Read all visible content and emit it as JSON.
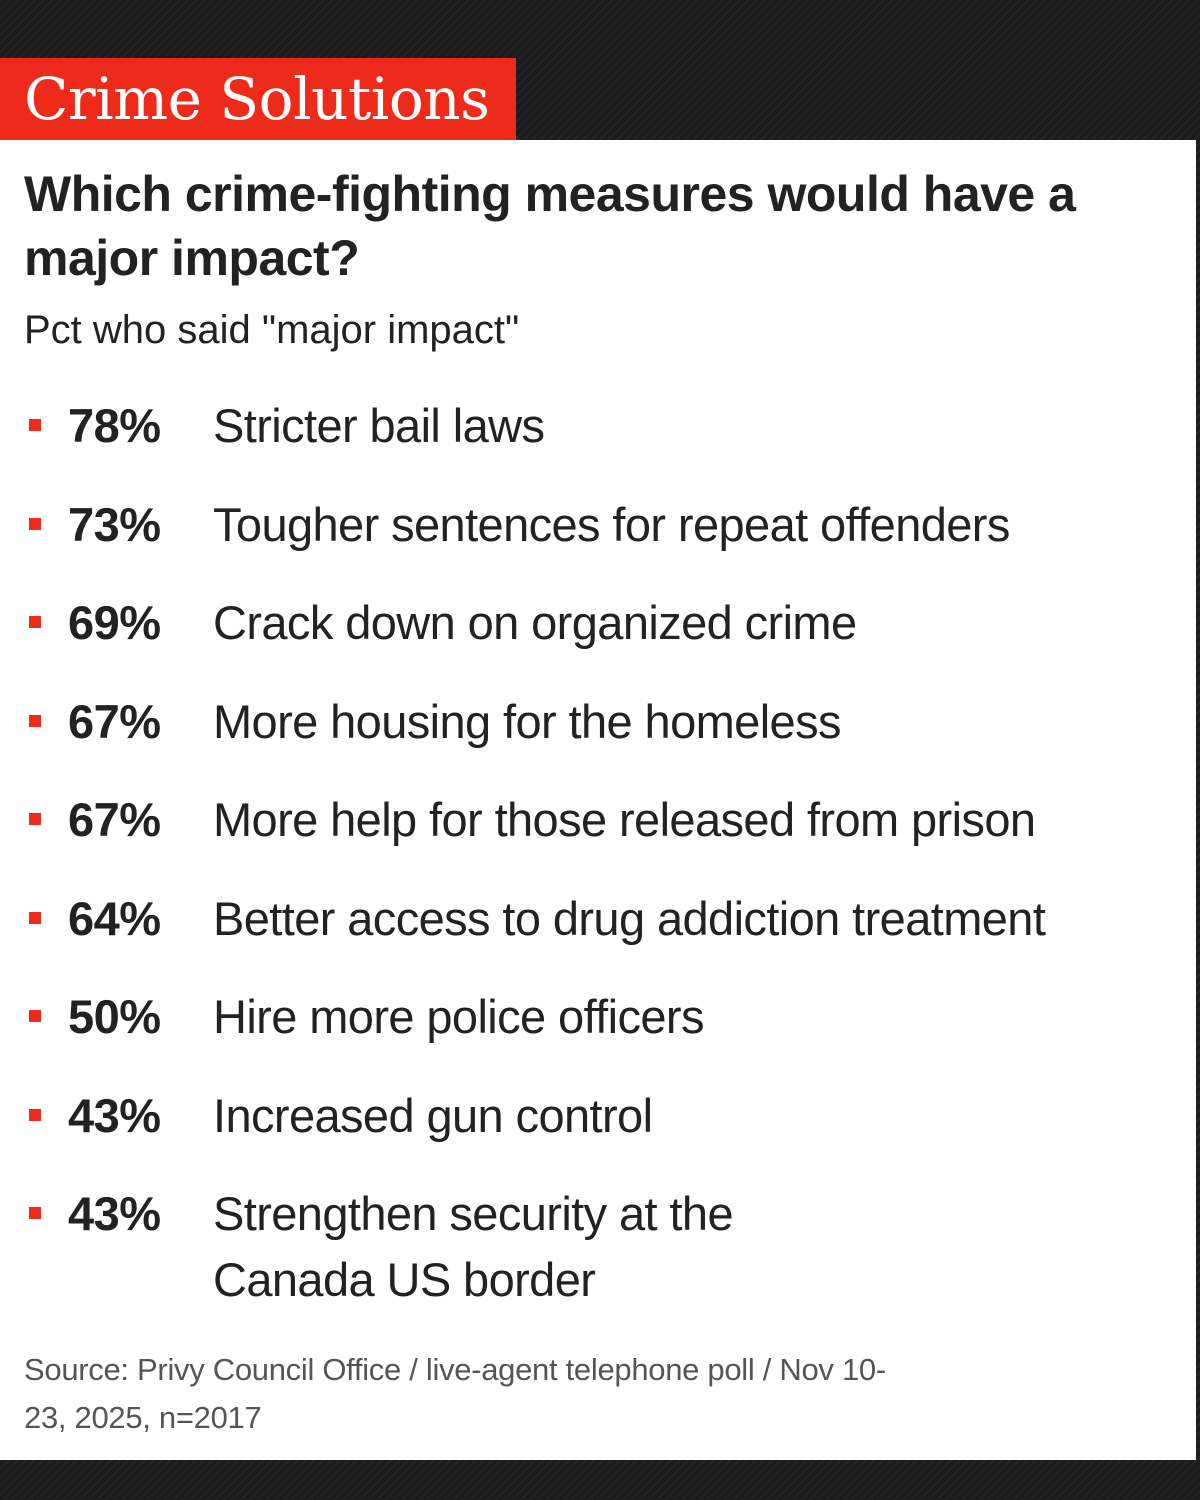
{
  "banner": {
    "title": "Crime Solutions",
    "color": "#ee2a1b"
  },
  "headline": "Which crime-fighting measures would have a major impact?",
  "subhead": "Pct who said \"major impact\"",
  "measures": [
    {
      "pct": "78%",
      "value": 78,
      "label": "Stricter bail laws"
    },
    {
      "pct": "73%",
      "value": 73,
      "label": "Tougher sentences for repeat offenders"
    },
    {
      "pct": "69%",
      "value": 69,
      "label": "Crack down on organized crime"
    },
    {
      "pct": "67%",
      "value": 67,
      "label": "More housing for the homeless"
    },
    {
      "pct": "67%",
      "value": 67,
      "label": "More help for those released from prison"
    },
    {
      "pct": "64%",
      "value": 64,
      "label": "Better access to drug addiction treatment"
    },
    {
      "pct": "50%",
      "value": 50,
      "label": "Hire more police officers"
    },
    {
      "pct": "43%",
      "value": 43,
      "label": "Increased gun control"
    },
    {
      "pct": "43%",
      "value": 43,
      "label": "Strengthen security at the Canada US border"
    }
  ],
  "source": "Source: Privy Council Office / live-agent telephone poll / Nov 10-23, 2025, n=2017",
  "colors": {
    "accent": "#ee2a1b",
    "text": "#222222",
    "source_text": "#555555",
    "background": "#1e1e1e",
    "card": "#ffffff"
  }
}
